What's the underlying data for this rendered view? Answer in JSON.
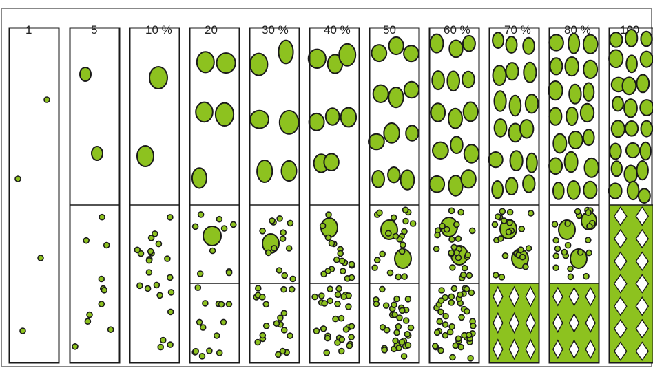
{
  "labels": [
    "1",
    "5",
    "10 %",
    "20",
    "30 %",
    "40 %",
    "50",
    "60 %",
    "70 %",
    "80 %",
    "100"
  ],
  "colors": {
    "fill": "#8dc21f",
    "stroke": "#1a1a1a",
    "background": "#ffffff",
    "frame": "#888888"
  }
}
